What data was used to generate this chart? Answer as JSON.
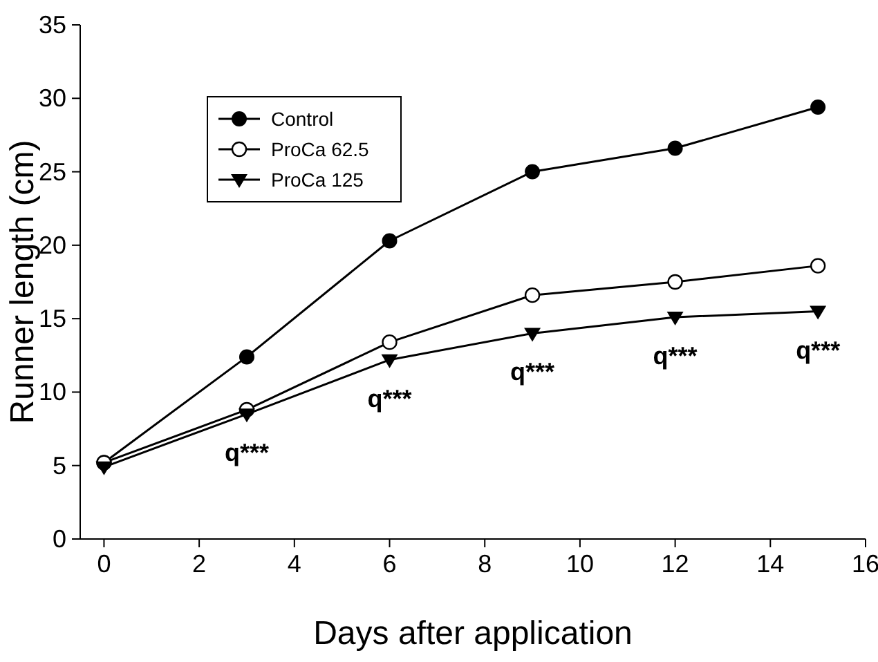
{
  "chart_data": {
    "type": "line",
    "xlabel": "Days after application",
    "ylabel": "Runner length (cm)",
    "x": [
      0,
      3,
      6,
      9,
      12,
      15
    ],
    "series": [
      {
        "name": "Control",
        "color": "#000000",
        "values": [
          5.2,
          12.4,
          20.3,
          25.0,
          26.6,
          29.4
        ],
        "marker": "circle"
      },
      {
        "name": "ProCa 62.5",
        "color": "#000000",
        "values": [
          5.2,
          8.8,
          13.4,
          16.6,
          17.5,
          18.6
        ],
        "marker": "circle_open"
      },
      {
        "name": "ProCa 125",
        "color": "#000000",
        "values": [
          4.9,
          8.5,
          12.2,
          14.0,
          15.1,
          15.5
        ],
        "marker": "triangle"
      }
    ],
    "xlim": [
      -0.5,
      16
    ],
    "xticks": [
      0,
      2,
      4,
      6,
      8,
      10,
      12,
      14,
      16
    ],
    "ylim": [
      0,
      35
    ],
    "yticks": [
      0,
      5,
      10,
      15,
      20,
      25,
      30,
      35
    ],
    "annotations": [
      "q***",
      "q***",
      "q***",
      "q***",
      "q***"
    ],
    "legend": "top left",
    "grid": false,
    "line_style": "solid"
  }
}
